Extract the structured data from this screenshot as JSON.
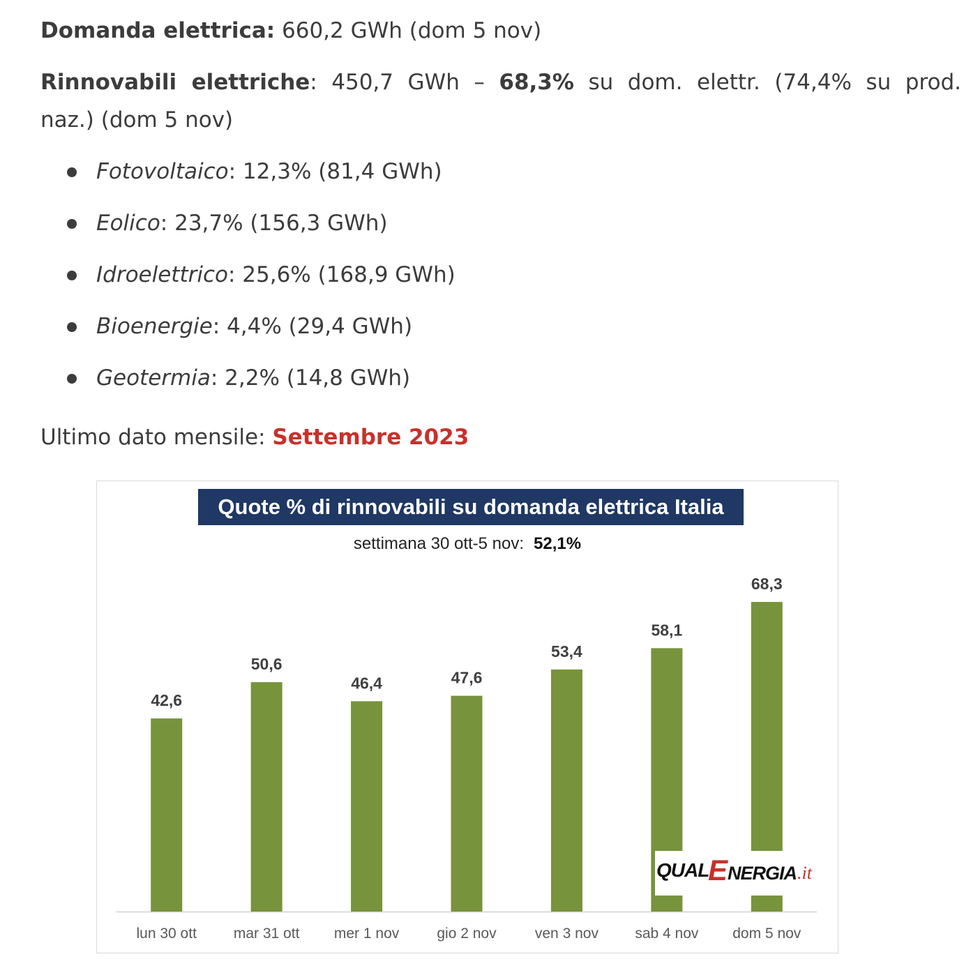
{
  "article": {
    "demand": {
      "label": "Domanda elettrica:",
      "value": " 660,2 GWh (dom 5 nov)"
    },
    "renewables": {
      "label": "Rinnovabili elettriche",
      "line1_mid": ": 450,7 GWh – ",
      "share": "68,3%",
      "line1_rest": " su dom. elettr. (74,4% su prod.",
      "line2": "naz.) (dom 5 nov)"
    },
    "sources": [
      {
        "name": "Fotovoltaico",
        "detail": ": 12,3% (81,4 GWh)"
      },
      {
        "name": "Eolico",
        "detail": ": 23,7% (156,3 GWh)"
      },
      {
        "name": "Idroelettrico",
        "detail": ": 25,6% (168,9 GWh)"
      },
      {
        "name": "Bioenergie",
        "detail": ": 4,4% (29,4 GWh)"
      },
      {
        "name": "Geotermia",
        "detail": ": 2,2% (14,8 GWh)"
      }
    ],
    "monthly": {
      "label": "Ultimo dato mensile: ",
      "link": "Settembre 2023"
    }
  },
  "chart_data": {
    "type": "bar",
    "title": "Quote % di rinnovabili su domanda elettrica Italia",
    "subtitle": "settimana 30 ott-5 nov:",
    "subtitle_value": "52,1%",
    "categories": [
      "lun 30 ott",
      "mar 31 ott",
      "mer 1 nov",
      "gio 2 nov",
      "ven 3 nov",
      "sab 4 nov",
      "dom 5 nov"
    ],
    "values": [
      42.6,
      50.6,
      46.4,
      47.6,
      53.4,
      58.1,
      68.3
    ],
    "data_labels": [
      "42,6",
      "50,6",
      "46,4",
      "47,6",
      "53,4",
      "58,1",
      "68,3"
    ],
    "ylim": [
      0,
      80
    ],
    "grid": false,
    "bar_color": "#77933c",
    "title_bg_color": "#1f3864",
    "logo_text": [
      "QUAL",
      "E",
      "NERGIA",
      ".it"
    ]
  }
}
